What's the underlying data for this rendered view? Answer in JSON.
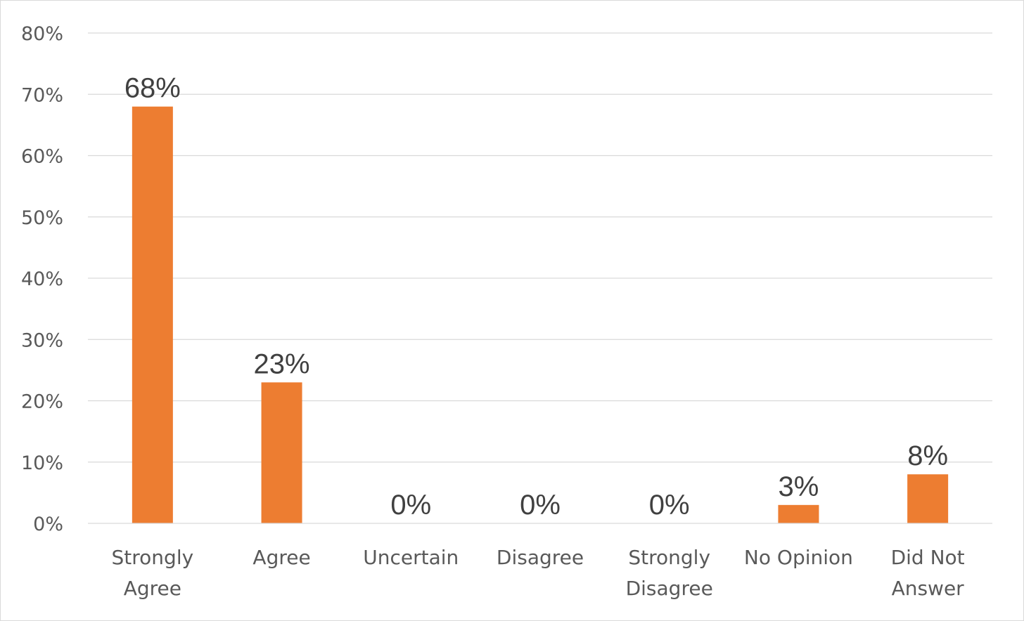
{
  "chart_data": {
    "type": "bar",
    "title": "",
    "xlabel": "",
    "ylabel": "",
    "categories": [
      [
        "Strongly",
        "Agree"
      ],
      [
        "Agree"
      ],
      [
        "Uncertain"
      ],
      [
        "Disagree"
      ],
      [
        "Strongly",
        "Disagree"
      ],
      [
        "No Opinion"
      ],
      [
        "Did Not",
        "Answer"
      ]
    ],
    "values": [
      68,
      23,
      0,
      0,
      0,
      3,
      8
    ],
    "data_labels": [
      "68%",
      "23%",
      "0%",
      "0%",
      "0%",
      "3%",
      "8%"
    ],
    "ylim": [
      0,
      80
    ],
    "y_ticks": [
      0,
      10,
      20,
      30,
      40,
      50,
      60,
      70,
      80
    ],
    "y_tick_labels": [
      "0%",
      "10%",
      "20%",
      "30%",
      "40%",
      "50%",
      "60%",
      "70%",
      "80%"
    ],
    "grid": true,
    "legend": "none",
    "bar_color": "#ED7D31",
    "grid_color": "#D9D9D9",
    "label_color": "#595959",
    "data_label_color": "#404040"
  }
}
